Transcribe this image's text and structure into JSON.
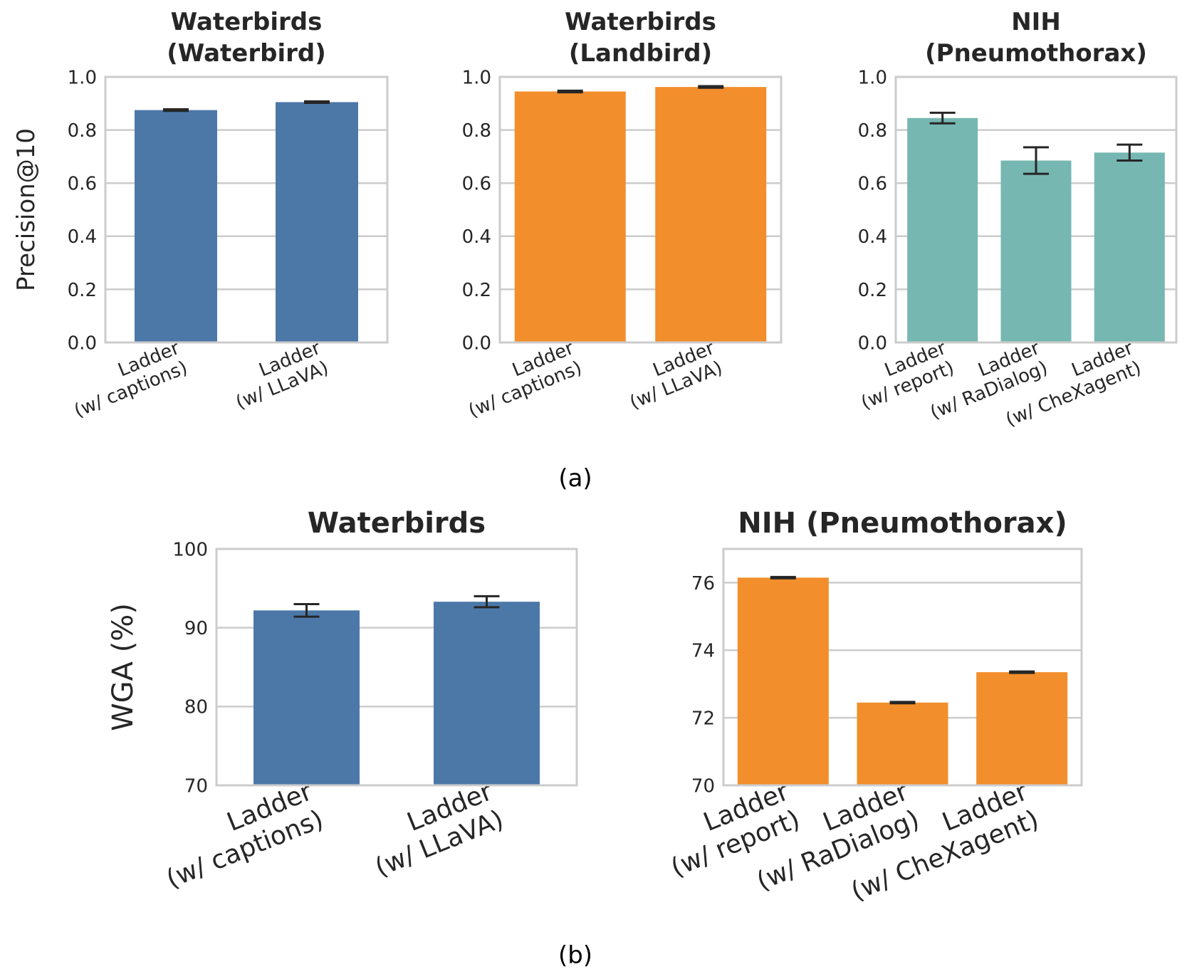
{
  "figure": {
    "caption_a": "(a)",
    "caption_b": "(b)"
  },
  "chart_data": [
    {
      "type": "bar",
      "title": [
        "Waterbirds",
        "(Waterbird)"
      ],
      "ylabel": "Precision@10",
      "ylim": [
        0.0,
        1.0
      ],
      "yticks": [
        0.0,
        0.2,
        0.4,
        0.6,
        0.8,
        1.0
      ],
      "ytick_labels": [
        "0.0",
        "0.2",
        "0.4",
        "0.6",
        "0.8",
        "1.0"
      ],
      "grid": true,
      "color": "#4c78a8",
      "categories": [
        [
          "Ladder",
          "(w/ captions)"
        ],
        [
          "Ladder",
          "(w/ LLaVA)"
        ]
      ],
      "values": [
        0.875,
        0.905
      ],
      "errors": [
        0.003,
        0.003
      ]
    },
    {
      "type": "bar",
      "title": [
        "Waterbirds",
        "(Landbird)"
      ],
      "ylabel": "",
      "ylim": [
        0.0,
        1.0
      ],
      "yticks": [
        0.0,
        0.2,
        0.4,
        0.6,
        0.8,
        1.0
      ],
      "ytick_labels": [
        "0.0",
        "0.2",
        "0.4",
        "0.6",
        "0.8",
        "1.0"
      ],
      "grid": true,
      "color": "#f28e2b",
      "categories": [
        [
          "Ladder",
          "(w/ captions)"
        ],
        [
          "Ladder",
          "(w/ LLaVA)"
        ]
      ],
      "values": [
        0.945,
        0.962
      ],
      "errors": [
        0.003,
        0.003
      ]
    },
    {
      "type": "bar",
      "title": [
        "NIH",
        "(Pneumothorax)"
      ],
      "ylabel": "",
      "ylim": [
        0.0,
        1.0
      ],
      "yticks": [
        0.0,
        0.2,
        0.4,
        0.6,
        0.8,
        1.0
      ],
      "ytick_labels": [
        "0.0",
        "0.2",
        "0.4",
        "0.6",
        "0.8",
        "1.0"
      ],
      "grid": true,
      "color": "#76b7b2",
      "categories": [
        [
          "Ladder",
          "(w/ report)"
        ],
        [
          "Ladder",
          "(w/ RaDialog)"
        ],
        [
          "Ladder",
          "(w/ CheXagent)"
        ]
      ],
      "values": [
        0.845,
        0.685,
        0.715
      ],
      "errors": [
        0.02,
        0.05,
        0.03
      ]
    },
    {
      "type": "bar",
      "title": [
        "Waterbirds"
      ],
      "ylabel": "WGA (%)",
      "ylim": [
        70,
        100
      ],
      "yticks": [
        70,
        80,
        90,
        100
      ],
      "ytick_labels": [
        "70",
        "80",
        "90",
        "100"
      ],
      "grid": true,
      "color": "#4c78a8",
      "categories": [
        [
          "Ladder",
          "(w/ captions)"
        ],
        [
          "Ladder",
          "(w/ LLaVA)"
        ]
      ],
      "values": [
        92.2,
        93.3
      ],
      "errors": [
        0.8,
        0.7
      ]
    },
    {
      "type": "bar",
      "title": [
        "NIH (Pneumothorax)"
      ],
      "ylabel": "",
      "ylim": [
        70,
        77
      ],
      "yticks": [
        70,
        72,
        74,
        76
      ],
      "ytick_labels": [
        "70",
        "72",
        "74",
        "76"
      ],
      "grid": true,
      "color": "#f28e2b",
      "categories": [
        [
          "Ladder",
          "(w/ report)"
        ],
        [
          "Ladder",
          "(w/ RaDialog)"
        ],
        [
          "Ladder",
          "(w/ CheXagent)"
        ]
      ],
      "values": [
        76.15,
        72.45,
        73.35
      ],
      "errors": [
        0.02,
        0.02,
        0.02
      ]
    }
  ]
}
